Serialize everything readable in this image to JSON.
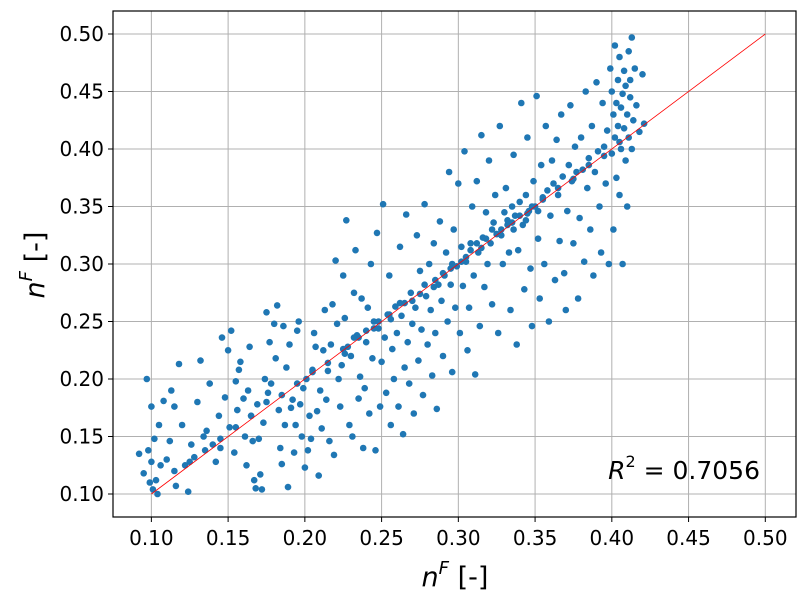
{
  "chart_data": {
    "type": "scatter",
    "title": "",
    "xlabel": {
      "base": "n",
      "sup": "F",
      "unit": " [-]"
    },
    "ylabel": {
      "base": "n",
      "sup": "F",
      "unit": " [-]"
    },
    "xlim": [
      0.075,
      0.52
    ],
    "ylim": [
      0.08,
      0.52
    ],
    "xticks": [
      "0.10",
      "0.15",
      "0.20",
      "0.25",
      "0.30",
      "0.35",
      "0.40",
      "0.45",
      "0.50"
    ],
    "yticks": [
      "0.10",
      "0.15",
      "0.20",
      "0.25",
      "0.30",
      "0.35",
      "0.40",
      "0.45",
      "0.50"
    ],
    "grid": true,
    "point_color": "#1f77b4",
    "reference_line": {
      "x": [
        0.1,
        0.5
      ],
      "y": [
        0.1,
        0.5
      ],
      "color": "#ff0000"
    },
    "annotation": {
      "base": "R",
      "sup": "2",
      "text": " = 0.7056"
    },
    "points": [
      [
        0.092,
        0.135
      ],
      [
        0.095,
        0.118
      ],
      [
        0.097,
        0.2
      ],
      [
        0.098,
        0.138
      ],
      [
        0.099,
        0.11
      ],
      [
        0.1,
        0.176
      ],
      [
        0.1,
        0.128
      ],
      [
        0.101,
        0.104
      ],
      [
        0.102,
        0.148
      ],
      [
        0.103,
        0.112
      ],
      [
        0.104,
        0.1
      ],
      [
        0.105,
        0.16
      ],
      [
        0.106,
        0.125
      ],
      [
        0.108,
        0.181
      ],
      [
        0.11,
        0.13
      ],
      [
        0.112,
        0.146
      ],
      [
        0.113,
        0.19
      ],
      [
        0.115,
        0.176
      ],
      [
        0.116,
        0.107
      ],
      [
        0.118,
        0.213
      ],
      [
        0.12,
        0.16
      ],
      [
        0.122,
        0.125
      ],
      [
        0.124,
        0.102
      ],
      [
        0.126,
        0.143
      ],
      [
        0.128,
        0.132
      ],
      [
        0.13,
        0.18
      ],
      [
        0.132,
        0.216
      ],
      [
        0.134,
        0.15
      ],
      [
        0.136,
        0.155
      ],
      [
        0.138,
        0.196
      ],
      [
        0.14,
        0.143
      ],
      [
        0.142,
        0.128
      ],
      [
        0.144,
        0.168
      ],
      [
        0.145,
        0.14
      ],
      [
        0.146,
        0.236
      ],
      [
        0.148,
        0.184
      ],
      [
        0.15,
        0.225
      ],
      [
        0.151,
        0.158
      ],
      [
        0.152,
        0.242
      ],
      [
        0.154,
        0.136
      ],
      [
        0.155,
        0.198
      ],
      [
        0.156,
        0.173
      ],
      [
        0.157,
        0.208
      ],
      [
        0.158,
        0.215
      ],
      [
        0.16,
        0.183
      ],
      [
        0.161,
        0.15
      ],
      [
        0.162,
        0.125
      ],
      [
        0.163,
        0.19
      ],
      [
        0.164,
        0.228
      ],
      [
        0.165,
        0.168
      ],
      [
        0.166,
        0.146
      ],
      [
        0.167,
        0.112
      ],
      [
        0.168,
        0.105
      ],
      [
        0.169,
        0.178
      ],
      [
        0.17,
        0.148
      ],
      [
        0.171,
        0.117
      ],
      [
        0.172,
        0.104
      ],
      [
        0.173,
        0.162
      ],
      [
        0.174,
        0.2
      ],
      [
        0.175,
        0.258
      ],
      [
        0.176,
        0.188
      ],
      [
        0.177,
        0.232
      ],
      [
        0.178,
        0.196
      ],
      [
        0.18,
        0.248
      ],
      [
        0.181,
        0.218
      ],
      [
        0.182,
        0.264
      ],
      [
        0.183,
        0.173
      ],
      [
        0.184,
        0.14
      ],
      [
        0.185,
        0.126
      ],
      [
        0.186,
        0.246
      ],
      [
        0.187,
        0.16
      ],
      [
        0.188,
        0.21
      ],
      [
        0.189,
        0.106
      ],
      [
        0.19,
        0.23
      ],
      [
        0.191,
        0.175
      ],
      [
        0.192,
        0.182
      ],
      [
        0.193,
        0.136
      ],
      [
        0.194,
        0.16
      ],
      [
        0.195,
        0.242
      ],
      [
        0.196,
        0.25
      ],
      [
        0.197,
        0.178
      ],
      [
        0.198,
        0.15
      ],
      [
        0.199,
        0.192
      ],
      [
        0.2,
        0.123
      ],
      [
        0.201,
        0.2
      ],
      [
        0.202,
        0.138
      ],
      [
        0.203,
        0.168
      ],
      [
        0.204,
        0.148
      ],
      [
        0.205,
        0.208
      ],
      [
        0.206,
        0.24
      ],
      [
        0.207,
        0.228
      ],
      [
        0.208,
        0.172
      ],
      [
        0.209,
        0.116
      ],
      [
        0.21,
        0.19
      ],
      [
        0.211,
        0.157
      ],
      [
        0.212,
        0.225
      ],
      [
        0.213,
        0.26
      ],
      [
        0.214,
        0.182
      ],
      [
        0.215,
        0.207
      ],
      [
        0.216,
        0.146
      ],
      [
        0.217,
        0.23
      ],
      [
        0.218,
        0.265
      ],
      [
        0.219,
        0.134
      ],
      [
        0.22,
        0.303
      ],
      [
        0.221,
        0.248
      ],
      [
        0.222,
        0.2
      ],
      [
        0.223,
        0.176
      ],
      [
        0.224,
        0.212
      ],
      [
        0.225,
        0.29
      ],
      [
        0.226,
        0.253
      ],
      [
        0.227,
        0.338
      ],
      [
        0.228,
        0.228
      ],
      [
        0.229,
        0.16
      ],
      [
        0.23,
        0.22
      ],
      [
        0.231,
        0.15
      ],
      [
        0.232,
        0.275
      ],
      [
        0.233,
        0.312
      ],
      [
        0.234,
        0.238
      ],
      [
        0.235,
        0.183
      ],
      [
        0.236,
        0.202
      ],
      [
        0.237,
        0.27
      ],
      [
        0.238,
        0.14
      ],
      [
        0.239,
        0.192
      ],
      [
        0.24,
        0.232
      ],
      [
        0.241,
        0.262
      ],
      [
        0.242,
        0.17
      ],
      [
        0.243,
        0.3
      ],
      [
        0.244,
        0.218
      ],
      [
        0.245,
        0.25
      ],
      [
        0.246,
        0.138
      ],
      [
        0.247,
        0.327
      ],
      [
        0.248,
        0.244
      ],
      [
        0.249,
        0.176
      ],
      [
        0.25,
        0.215
      ],
      [
        0.251,
        0.352
      ],
      [
        0.252,
        0.236
      ],
      [
        0.253,
        0.188
      ],
      [
        0.254,
        0.256
      ],
      [
        0.255,
        0.29
      ],
      [
        0.256,
        0.16
      ],
      [
        0.257,
        0.226
      ],
      [
        0.258,
        0.2
      ],
      [
        0.259,
        0.263
      ],
      [
        0.26,
        0.24
      ],
      [
        0.261,
        0.176
      ],
      [
        0.262,
        0.315
      ],
      [
        0.263,
        0.255
      ],
      [
        0.264,
        0.152
      ],
      [
        0.265,
        0.21
      ],
      [
        0.266,
        0.343
      ],
      [
        0.267,
        0.232
      ],
      [
        0.268,
        0.196
      ],
      [
        0.269,
        0.275
      ],
      [
        0.27,
        0.248
      ],
      [
        0.271,
        0.17
      ],
      [
        0.272,
        0.262
      ],
      [
        0.273,
        0.325
      ],
      [
        0.274,
        0.216
      ],
      [
        0.275,
        0.294
      ],
      [
        0.276,
        0.243
      ],
      [
        0.277,
        0.186
      ],
      [
        0.278,
        0.352
      ],
      [
        0.279,
        0.272
      ],
      [
        0.28,
        0.23
      ],
      [
        0.281,
        0.3
      ],
      [
        0.282,
        0.26
      ],
      [
        0.283,
        0.203
      ],
      [
        0.284,
        0.318
      ],
      [
        0.285,
        0.24
      ],
      [
        0.286,
        0.174
      ],
      [
        0.287,
        0.282
      ],
      [
        0.288,
        0.337
      ],
      [
        0.289,
        0.268
      ],
      [
        0.29,
        0.22
      ],
      [
        0.291,
        0.29
      ],
      [
        0.292,
        0.31
      ],
      [
        0.293,
        0.25
      ],
      [
        0.294,
        0.38
      ],
      [
        0.295,
        0.282
      ],
      [
        0.296,
        0.206
      ],
      [
        0.297,
        0.33
      ],
      [
        0.298,
        0.262
      ],
      [
        0.299,
        0.298
      ],
      [
        0.3,
        0.37
      ],
      [
        0.301,
        0.24
      ],
      [
        0.302,
        0.315
      ],
      [
        0.303,
        0.281
      ],
      [
        0.304,
        0.398
      ],
      [
        0.305,
        0.302
      ],
      [
        0.306,
        0.225
      ],
      [
        0.307,
        0.262
      ],
      [
        0.308,
        0.318
      ],
      [
        0.309,
        0.35
      ],
      [
        0.31,
        0.29
      ],
      [
        0.311,
        0.204
      ],
      [
        0.312,
        0.372
      ],
      [
        0.313,
        0.31
      ],
      [
        0.314,
        0.246
      ],
      [
        0.315,
        0.412
      ],
      [
        0.316,
        0.323
      ],
      [
        0.317,
        0.28
      ],
      [
        0.318,
        0.345
      ],
      [
        0.319,
        0.3
      ],
      [
        0.32,
        0.39
      ],
      [
        0.321,
        0.318
      ],
      [
        0.322,
        0.265
      ],
      [
        0.323,
        0.336
      ],
      [
        0.324,
        0.36
      ],
      [
        0.325,
        0.326
      ],
      [
        0.326,
        0.24
      ],
      [
        0.327,
        0.42
      ],
      [
        0.328,
        0.33
      ],
      [
        0.329,
        0.3
      ],
      [
        0.33,
        0.345
      ],
      [
        0.331,
        0.366
      ],
      [
        0.332,
        0.338
      ],
      [
        0.333,
        0.31
      ],
      [
        0.334,
        0.26
      ],
      [
        0.335,
        0.35
      ],
      [
        0.336,
        0.395
      ],
      [
        0.337,
        0.342
      ],
      [
        0.338,
        0.23
      ],
      [
        0.339,
        0.312
      ],
      [
        0.34,
        0.354
      ],
      [
        0.341,
        0.44
      ],
      [
        0.342,
        0.334
      ],
      [
        0.343,
        0.278
      ],
      [
        0.344,
        0.36
      ],
      [
        0.345,
        0.41
      ],
      [
        0.346,
        0.346
      ],
      [
        0.347,
        0.296
      ],
      [
        0.348,
        0.246
      ],
      [
        0.349,
        0.372
      ],
      [
        0.35,
        0.35
      ],
      [
        0.351,
        0.446
      ],
      [
        0.352,
        0.322
      ],
      [
        0.353,
        0.27
      ],
      [
        0.354,
        0.386
      ],
      [
        0.355,
        0.358
      ],
      [
        0.356,
        0.3
      ],
      [
        0.357,
        0.42
      ],
      [
        0.358,
        0.364
      ],
      [
        0.359,
        0.25
      ],
      [
        0.36,
        0.342
      ],
      [
        0.361,
        0.39
      ],
      [
        0.362,
        0.37
      ],
      [
        0.363,
        0.286
      ],
      [
        0.364,
        0.408
      ],
      [
        0.365,
        0.36
      ],
      [
        0.366,
        0.32
      ],
      [
        0.367,
        0.43
      ],
      [
        0.368,
        0.376
      ],
      [
        0.369,
        0.292
      ],
      [
        0.37,
        0.26
      ],
      [
        0.371,
        0.346
      ],
      [
        0.372,
        0.386
      ],
      [
        0.373,
        0.438
      ],
      [
        0.374,
        0.372
      ],
      [
        0.375,
        0.318
      ],
      [
        0.376,
        0.402
      ],
      [
        0.377,
        0.38
      ],
      [
        0.378,
        0.27
      ],
      [
        0.379,
        0.34
      ],
      [
        0.38,
        0.41
      ],
      [
        0.381,
        0.382
      ],
      [
        0.382,
        0.302
      ],
      [
        0.383,
        0.45
      ],
      [
        0.384,
        0.366
      ],
      [
        0.385,
        0.392
      ],
      [
        0.386,
        0.33
      ],
      [
        0.387,
        0.42
      ],
      [
        0.388,
        0.29
      ],
      [
        0.389,
        0.38
      ],
      [
        0.39,
        0.458
      ],
      [
        0.391,
        0.398
      ],
      [
        0.392,
        0.35
      ],
      [
        0.393,
        0.31
      ],
      [
        0.394,
        0.44
      ],
      [
        0.395,
        0.402
      ],
      [
        0.396,
        0.37
      ],
      [
        0.397,
        0.416
      ],
      [
        0.398,
        0.3
      ],
      [
        0.399,
        0.47
      ],
      [
        0.4,
        0.396
      ],
      [
        0.4,
        0.45
      ],
      [
        0.401,
        0.43
      ],
      [
        0.401,
        0.33
      ],
      [
        0.402,
        0.41
      ],
      [
        0.402,
        0.49
      ],
      [
        0.403,
        0.375
      ],
      [
        0.403,
        0.44
      ],
      [
        0.404,
        0.42
      ],
      [
        0.404,
        0.46
      ],
      [
        0.405,
        0.36
      ],
      [
        0.405,
        0.48
      ],
      [
        0.406,
        0.4
      ],
      [
        0.406,
        0.436
      ],
      [
        0.407,
        0.448
      ],
      [
        0.407,
        0.3
      ],
      [
        0.408,
        0.418
      ],
      [
        0.408,
        0.468
      ],
      [
        0.409,
        0.39
      ],
      [
        0.409,
        0.455
      ],
      [
        0.41,
        0.43
      ],
      [
        0.41,
        0.35
      ],
      [
        0.411,
        0.485
      ],
      [
        0.411,
        0.41
      ],
      [
        0.412,
        0.445
      ],
      [
        0.412,
        0.46
      ],
      [
        0.413,
        0.4
      ],
      [
        0.413,
        0.497
      ],
      [
        0.414,
        0.425
      ],
      [
        0.415,
        0.47
      ],
      [
        0.416,
        0.438
      ],
      [
        0.418,
        0.415
      ],
      [
        0.42,
        0.465
      ],
      [
        0.421,
        0.422
      ],
      [
        0.115,
        0.12
      ],
      [
        0.125,
        0.128
      ],
      [
        0.135,
        0.138
      ],
      [
        0.145,
        0.148
      ],
      [
        0.155,
        0.158
      ],
      [
        0.165,
        0.168
      ],
      [
        0.175,
        0.18
      ],
      [
        0.185,
        0.186
      ],
      [
        0.195,
        0.196
      ],
      [
        0.205,
        0.206
      ],
      [
        0.215,
        0.214
      ],
      [
        0.225,
        0.226
      ],
      [
        0.235,
        0.236
      ],
      [
        0.245,
        0.244
      ],
      [
        0.255,
        0.256
      ],
      [
        0.265,
        0.266
      ],
      [
        0.275,
        0.274
      ],
      [
        0.285,
        0.286
      ],
      [
        0.295,
        0.296
      ],
      [
        0.305,
        0.306
      ],
      [
        0.315,
        0.314
      ],
      [
        0.325,
        0.326
      ],
      [
        0.335,
        0.336
      ],
      [
        0.345,
        0.344
      ],
      [
        0.355,
        0.356
      ],
      [
        0.365,
        0.366
      ],
      [
        0.375,
        0.374
      ],
      [
        0.385,
        0.386
      ],
      [
        0.395,
        0.394
      ],
      [
        0.405,
        0.406
      ],
      [
        0.318,
        0.322
      ],
      [
        0.322,
        0.33
      ],
      [
        0.328,
        0.325
      ],
      [
        0.332,
        0.334
      ],
      [
        0.336,
        0.33
      ],
      [
        0.34,
        0.342
      ],
      [
        0.344,
        0.338
      ],
      [
        0.348,
        0.35
      ],
      [
        0.352,
        0.346
      ],
      [
        0.308,
        0.312
      ],
      [
        0.312,
        0.318
      ],
      [
        0.302,
        0.302
      ],
      [
        0.296,
        0.3
      ],
      [
        0.29,
        0.292
      ],
      [
        0.284,
        0.28
      ],
      [
        0.278,
        0.282
      ],
      [
        0.27,
        0.268
      ],
      [
        0.262,
        0.266
      ],
      [
        0.256,
        0.252
      ],
      [
        0.248,
        0.25
      ],
      [
        0.24,
        0.242
      ],
      [
        0.232,
        0.236
      ],
      [
        0.226,
        0.222
      ]
    ]
  }
}
